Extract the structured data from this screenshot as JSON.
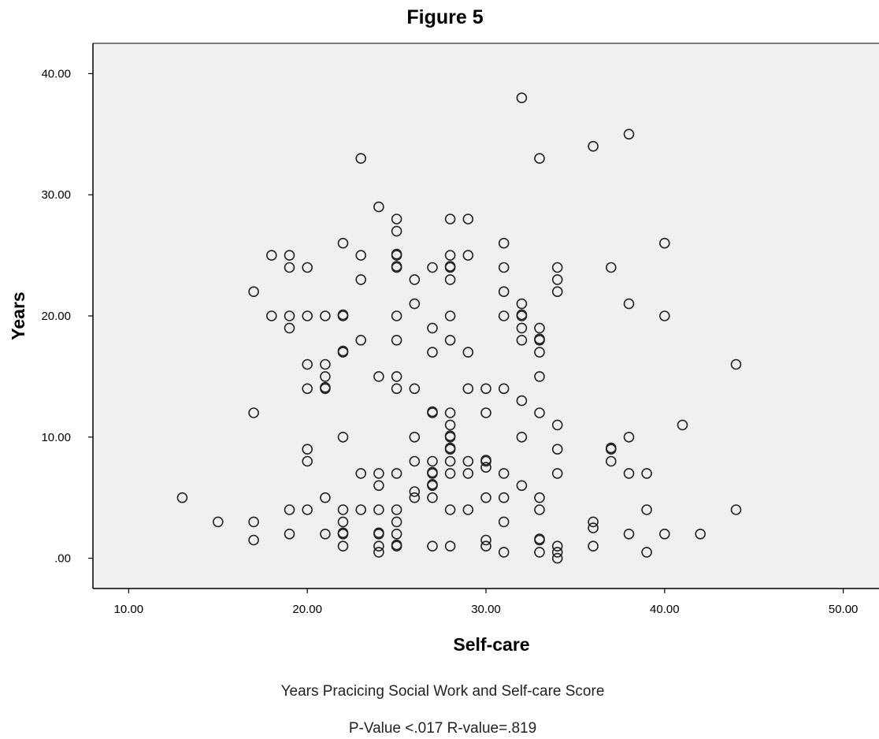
{
  "chart_data": {
    "type": "scatter",
    "title": "Figure 5",
    "xlabel": "Self-care",
    "ylabel": "Years",
    "xlim": [
      8,
      52
    ],
    "ylim": [
      -2.5,
      42.5
    ],
    "xticks": [
      "10.00",
      "20.00",
      "30.00",
      "40.00",
      "50.00"
    ],
    "xtick_values": [
      10,
      20,
      30,
      40,
      50
    ],
    "yticks": [
      ".00",
      "10.00",
      "20.00",
      "30.00",
      "40.00"
    ],
    "ytick_values": [
      0,
      10,
      20,
      30,
      40
    ],
    "caption_lines": [
      "Years Pracicing Social Work and Self-care Score",
      "P-Value <.017 R-value=.819"
    ],
    "grid": false,
    "legend": "none",
    "colors": {
      "plot_background": "#f0f0f0",
      "marker": "#222222",
      "axis": "#000000"
    },
    "points": [
      {
        "x": 13,
        "y": 5
      },
      {
        "x": 15,
        "y": 3
      },
      {
        "x": 17,
        "y": 22
      },
      {
        "x": 17,
        "y": 12
      },
      {
        "x": 17,
        "y": 3
      },
      {
        "x": 17,
        "y": 1.5
      },
      {
        "x": 18,
        "y": 25
      },
      {
        "x": 18,
        "y": 20
      },
      {
        "x": 19,
        "y": 25
      },
      {
        "x": 19,
        "y": 24
      },
      {
        "x": 19,
        "y": 20
      },
      {
        "x": 19,
        "y": 19
      },
      {
        "x": 19,
        "y": 4
      },
      {
        "x": 19,
        "y": 2
      },
      {
        "x": 20,
        "y": 24
      },
      {
        "x": 20,
        "y": 20
      },
      {
        "x": 20,
        "y": 16
      },
      {
        "x": 20,
        "y": 14
      },
      {
        "x": 20,
        "y": 9
      },
      {
        "x": 20,
        "y": 8
      },
      {
        "x": 20,
        "y": 4
      },
      {
        "x": 21,
        "y": 20
      },
      {
        "x": 21,
        "y": 16
      },
      {
        "x": 21,
        "y": 15
      },
      {
        "x": 21,
        "y": 14
      },
      {
        "x": 21,
        "y": 14.1
      },
      {
        "x": 21,
        "y": 5
      },
      {
        "x": 21,
        "y": 2
      },
      {
        "x": 22,
        "y": 26
      },
      {
        "x": 22,
        "y": 20
      },
      {
        "x": 22,
        "y": 20.1
      },
      {
        "x": 22,
        "y": 17
      },
      {
        "x": 22,
        "y": 17.1
      },
      {
        "x": 22,
        "y": 10
      },
      {
        "x": 22,
        "y": 4
      },
      {
        "x": 22,
        "y": 3
      },
      {
        "x": 22,
        "y": 2
      },
      {
        "x": 22,
        "y": 2.1
      },
      {
        "x": 22,
        "y": 1
      },
      {
        "x": 23,
        "y": 33
      },
      {
        "x": 23,
        "y": 25
      },
      {
        "x": 23,
        "y": 23
      },
      {
        "x": 23,
        "y": 18
      },
      {
        "x": 23,
        "y": 7
      },
      {
        "x": 23,
        "y": 4
      },
      {
        "x": 24,
        "y": 29
      },
      {
        "x": 24,
        "y": 15
      },
      {
        "x": 24,
        "y": 7
      },
      {
        "x": 24,
        "y": 6
      },
      {
        "x": 24,
        "y": 4
      },
      {
        "x": 24,
        "y": 2
      },
      {
        "x": 24,
        "y": 2.1
      },
      {
        "x": 24,
        "y": 1
      },
      {
        "x": 24,
        "y": 0.5
      },
      {
        "x": 25,
        "y": 28
      },
      {
        "x": 25,
        "y": 27
      },
      {
        "x": 25,
        "y": 25
      },
      {
        "x": 25,
        "y": 25.1
      },
      {
        "x": 25,
        "y": 24
      },
      {
        "x": 25,
        "y": 24.1
      },
      {
        "x": 25,
        "y": 20
      },
      {
        "x": 25,
        "y": 18
      },
      {
        "x": 25,
        "y": 15
      },
      {
        "x": 25,
        "y": 14
      },
      {
        "x": 25,
        "y": 7
      },
      {
        "x": 25,
        "y": 4
      },
      {
        "x": 25,
        "y": 3
      },
      {
        "x": 25,
        "y": 2
      },
      {
        "x": 25,
        "y": 1
      },
      {
        "x": 25,
        "y": 1.1
      },
      {
        "x": 26,
        "y": 23
      },
      {
        "x": 26,
        "y": 21
      },
      {
        "x": 26,
        "y": 14
      },
      {
        "x": 26,
        "y": 10
      },
      {
        "x": 26,
        "y": 8
      },
      {
        "x": 26,
        "y": 5.5
      },
      {
        "x": 26,
        "y": 5
      },
      {
        "x": 27,
        "y": 24
      },
      {
        "x": 27,
        "y": 19
      },
      {
        "x": 27,
        "y": 17
      },
      {
        "x": 27,
        "y": 12
      },
      {
        "x": 27,
        "y": 12.1
      },
      {
        "x": 27,
        "y": 8
      },
      {
        "x": 27,
        "y": 7
      },
      {
        "x": 27,
        "y": 7.1
      },
      {
        "x": 27,
        "y": 6
      },
      {
        "x": 27,
        "y": 6.1
      },
      {
        "x": 27,
        "y": 5
      },
      {
        "x": 27,
        "y": 1
      },
      {
        "x": 28,
        "y": 28
      },
      {
        "x": 28,
        "y": 25
      },
      {
        "x": 28,
        "y": 24
      },
      {
        "x": 28,
        "y": 24.1
      },
      {
        "x": 28,
        "y": 23
      },
      {
        "x": 28,
        "y": 20
      },
      {
        "x": 28,
        "y": 18
      },
      {
        "x": 28,
        "y": 12
      },
      {
        "x": 28,
        "y": 11
      },
      {
        "x": 28,
        "y": 10
      },
      {
        "x": 28,
        "y": 10.1
      },
      {
        "x": 28,
        "y": 9
      },
      {
        "x": 28,
        "y": 9.1
      },
      {
        "x": 28,
        "y": 8
      },
      {
        "x": 28,
        "y": 7
      },
      {
        "x": 28,
        "y": 4
      },
      {
        "x": 28,
        "y": 1
      },
      {
        "x": 29,
        "y": 28
      },
      {
        "x": 29,
        "y": 25
      },
      {
        "x": 29,
        "y": 17
      },
      {
        "x": 29,
        "y": 14
      },
      {
        "x": 29,
        "y": 8
      },
      {
        "x": 29,
        "y": 7
      },
      {
        "x": 29,
        "y": 4
      },
      {
        "x": 30,
        "y": 14
      },
      {
        "x": 30,
        "y": 12
      },
      {
        "x": 30,
        "y": 8
      },
      {
        "x": 30,
        "y": 8.1
      },
      {
        "x": 30,
        "y": 7.5
      },
      {
        "x": 30,
        "y": 5
      },
      {
        "x": 30,
        "y": 1.5
      },
      {
        "x": 30,
        "y": 1
      },
      {
        "x": 31,
        "y": 26
      },
      {
        "x": 31,
        "y": 24
      },
      {
        "x": 31,
        "y": 22
      },
      {
        "x": 31,
        "y": 20
      },
      {
        "x": 31,
        "y": 14
      },
      {
        "x": 31,
        "y": 7
      },
      {
        "x": 31,
        "y": 5
      },
      {
        "x": 31,
        "y": 3
      },
      {
        "x": 31,
        "y": 0.5
      },
      {
        "x": 32,
        "y": 38
      },
      {
        "x": 32,
        "y": 21
      },
      {
        "x": 32,
        "y": 20
      },
      {
        "x": 32,
        "y": 20.1
      },
      {
        "x": 32,
        "y": 19
      },
      {
        "x": 32,
        "y": 18
      },
      {
        "x": 32,
        "y": 13
      },
      {
        "x": 32,
        "y": 10
      },
      {
        "x": 32,
        "y": 6
      },
      {
        "x": 33,
        "y": 33
      },
      {
        "x": 33,
        "y": 19
      },
      {
        "x": 33,
        "y": 18
      },
      {
        "x": 33,
        "y": 18.1
      },
      {
        "x": 33,
        "y": 17
      },
      {
        "x": 33,
        "y": 15
      },
      {
        "x": 33,
        "y": 12
      },
      {
        "x": 33,
        "y": 5
      },
      {
        "x": 33,
        "y": 4
      },
      {
        "x": 33,
        "y": 1.5
      },
      {
        "x": 33,
        "y": 1.6
      },
      {
        "x": 33,
        "y": 0.5
      },
      {
        "x": 34,
        "y": 24
      },
      {
        "x": 34,
        "y": 23
      },
      {
        "x": 34,
        "y": 22
      },
      {
        "x": 34,
        "y": 11
      },
      {
        "x": 34,
        "y": 9
      },
      {
        "x": 34,
        "y": 7
      },
      {
        "x": 34,
        "y": 1
      },
      {
        "x": 34,
        "y": 0.5
      },
      {
        "x": 34,
        "y": 0
      },
      {
        "x": 36,
        "y": 34
      },
      {
        "x": 36,
        "y": 3
      },
      {
        "x": 36,
        "y": 2.5
      },
      {
        "x": 36,
        "y": 1
      },
      {
        "x": 37,
        "y": 24
      },
      {
        "x": 37,
        "y": 9
      },
      {
        "x": 37,
        "y": 9.1
      },
      {
        "x": 37,
        "y": 8
      },
      {
        "x": 38,
        "y": 35
      },
      {
        "x": 38,
        "y": 21
      },
      {
        "x": 38,
        "y": 10
      },
      {
        "x": 38,
        "y": 7
      },
      {
        "x": 38,
        "y": 2
      },
      {
        "x": 39,
        "y": 7
      },
      {
        "x": 39,
        "y": 4
      },
      {
        "x": 39,
        "y": 0.5
      },
      {
        "x": 40,
        "y": 26
      },
      {
        "x": 40,
        "y": 20
      },
      {
        "x": 40,
        "y": 2
      },
      {
        "x": 41,
        "y": 11
      },
      {
        "x": 42,
        "y": 2
      },
      {
        "x": 44,
        "y": 16
      },
      {
        "x": 44,
        "y": 4
      }
    ]
  }
}
